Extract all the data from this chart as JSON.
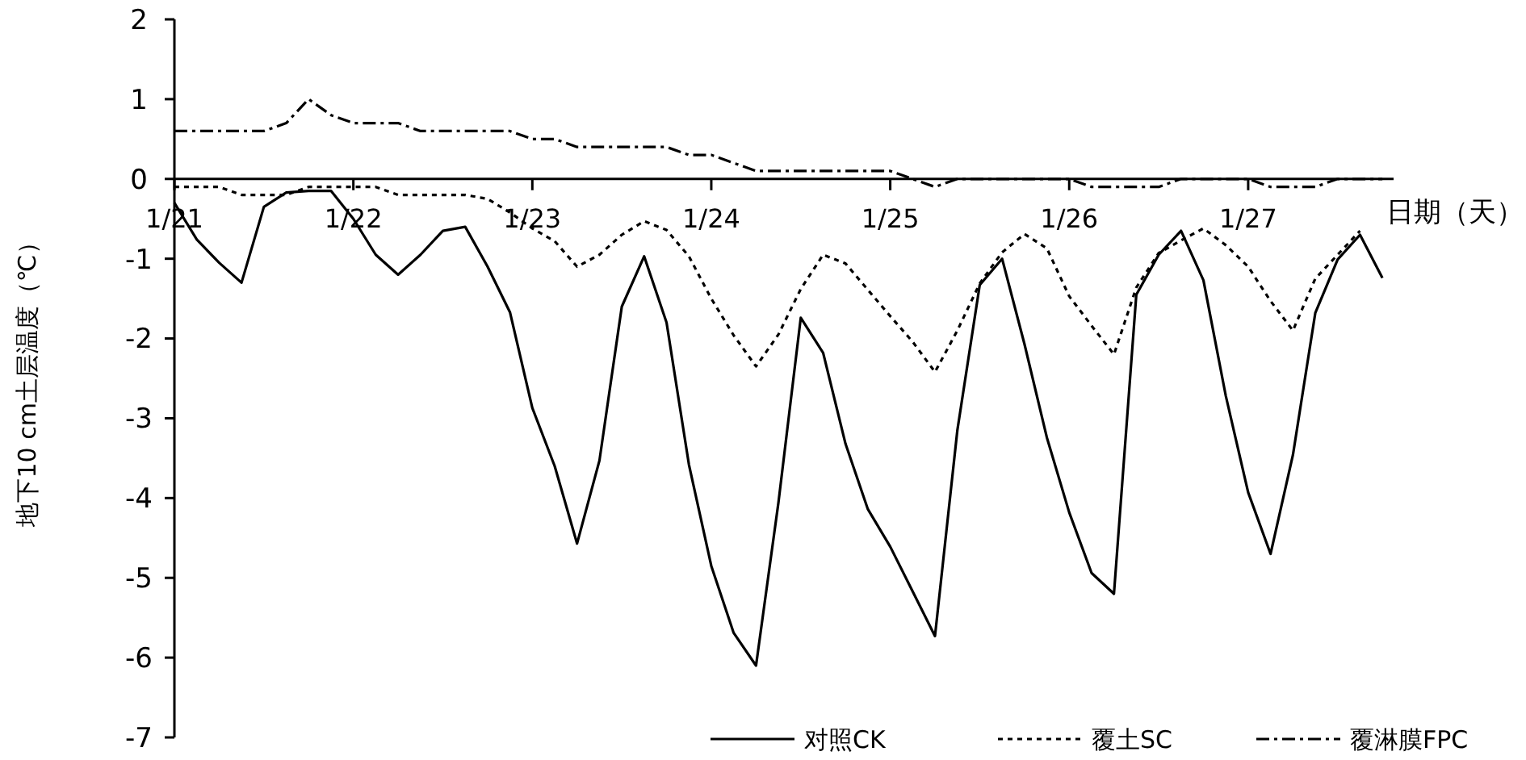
{
  "chart_data": {
    "type": "line",
    "xlabel": "日期（天）",
    "ylabel": "地下10 cm土层温度（℃）",
    "categories": [
      "1/21",
      null,
      null,
      null,
      null,
      null,
      null,
      null,
      "1/22",
      null,
      null,
      null,
      null,
      null,
      null,
      null,
      "1/23",
      null,
      null,
      null,
      null,
      null,
      null,
      null,
      "1/24",
      null,
      null,
      null,
      null,
      null,
      null,
      null,
      "1/25",
      null,
      null,
      null,
      null,
      null,
      null,
      null,
      "1/26",
      null,
      null,
      null,
      null,
      null,
      null,
      null,
      "1/27",
      null,
      null,
      null,
      null,
      null,
      null
    ],
    "ylim": [
      -7,
      2
    ],
    "yticks": [
      -7,
      -6,
      -5,
      -4,
      -3,
      -2,
      -1,
      0,
      1,
      2
    ],
    "grid": false,
    "marker": "none",
    "legend": "bottom right",
    "series": [
      {
        "name": "对照CK",
        "color": "#000000",
        "line_style": "solid",
        "values": [
          -0.3,
          -0.76,
          -1.05,
          -1.3,
          -0.35,
          -0.17,
          -0.15,
          -0.15,
          -0.5,
          -0.95,
          -1.2,
          -0.95,
          -0.65,
          -0.6,
          -1.1,
          -1.67,
          -2.87,
          -3.6,
          -4.57,
          -3.53,
          -1.6,
          -0.97,
          -1.8,
          -3.58,
          -4.85,
          -5.69,
          -6.1,
          -4.06,
          -1.74,
          -2.18,
          -3.32,
          -4.14,
          -4.61,
          -5.17,
          -5.73,
          -3.15,
          -1.33,
          -1.0,
          -2.07,
          -3.24,
          -4.18,
          -4.94,
          -5.2,
          -1.45,
          -0.95,
          -0.65,
          -1.27,
          -2.72,
          -3.93,
          -4.7,
          -3.46,
          -1.68,
          -1.01,
          -0.7,
          -1.24
        ]
      },
      {
        "name": "覆土SC",
        "color": "#000000",
        "line_style": "dotted",
        "values": [
          -0.1,
          -0.1,
          -0.1,
          -0.2,
          -0.2,
          -0.2,
          -0.1,
          -0.1,
          -0.1,
          -0.1,
          -0.2,
          -0.2,
          -0.2,
          -0.2,
          -0.25,
          -0.42,
          -0.62,
          -0.78,
          -1.1,
          -0.95,
          -0.7,
          -0.53,
          -0.64,
          -0.97,
          -1.5,
          -1.96,
          -2.35,
          -1.95,
          -1.38,
          -0.95,
          -1.06,
          -1.39,
          -1.72,
          -2.04,
          -2.42,
          -1.9,
          -1.31,
          -0.92,
          -0.69,
          -0.87,
          -1.47,
          -1.84,
          -2.2,
          -1.36,
          -0.93,
          -0.77,
          -0.62,
          -0.83,
          -1.1,
          -1.53,
          -1.9,
          -1.25,
          -0.95,
          -0.65,
          null
        ]
      },
      {
        "name": "覆淋膜FPC",
        "color": "#000000",
        "line_style": "dashed",
        "values": [
          0.6,
          0.6,
          0.6,
          0.6,
          0.6,
          0.7,
          1.0,
          0.8,
          0.7,
          0.7,
          0.7,
          0.6,
          0.6,
          0.6,
          0.6,
          0.6,
          0.5,
          0.5,
          0.4,
          0.4,
          0.4,
          0.4,
          0.4,
          0.3,
          0.3,
          0.2,
          0.1,
          0.1,
          0.1,
          0.1,
          0.1,
          0.1,
          0.1,
          0,
          -0.1,
          0,
          0,
          0,
          0,
          0,
          0,
          -0.1,
          -0.1,
          -0.1,
          -0.1,
          0,
          0,
          0,
          0,
          -0.1,
          -0.1,
          -0.1,
          0,
          0,
          0
        ]
      }
    ]
  }
}
